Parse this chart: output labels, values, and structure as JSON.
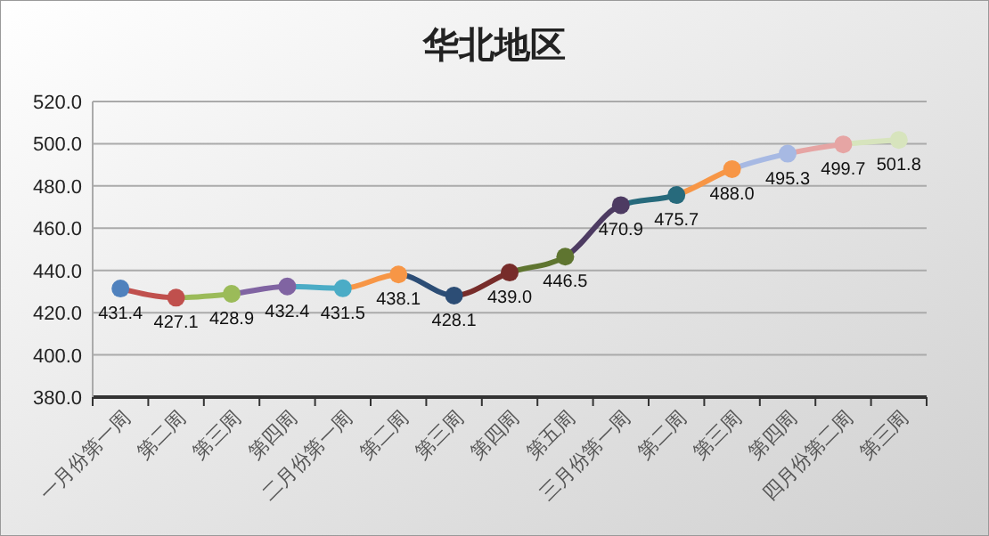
{
  "chart_data": {
    "type": "line",
    "title": "华北地区",
    "categories": [
      "一月份第一周",
      "第二周",
      "第三周",
      "第四周",
      "二月份第一周",
      "第二周",
      "第三周",
      "第四周",
      "第五周",
      "三月份第一周",
      "第二周",
      "第三周",
      "第四周",
      "四月份第二周",
      "第三周"
    ],
    "series": [
      {
        "values": [
          431.4,
          427.1,
          428.9,
          432.4,
          431.5,
          438.1,
          428.1,
          439.0,
          446.5,
          470.9,
          475.7,
          488.0,
          495.3,
          499.7,
          501.8
        ],
        "value_labels": [
          "431.4",
          "427.1",
          "428.9",
          "432.4",
          "431.5",
          "438.1",
          "428.1",
          "439.0",
          "446.5",
          "470.9",
          "475.7",
          "488.0",
          "495.3",
          "499.7",
          "501.8"
        ],
        "colors": [
          "#4f81bd",
          "#c0504d",
          "#9bbb59",
          "#8064a2",
          "#4bacc6",
          "#f79646",
          "#2c4d75",
          "#772c2a",
          "#5f7530",
          "#4d3b62",
          "#276a7c",
          "#f79646",
          "#a7b9e3",
          "#e6a5a4",
          "#d7e4bd"
        ]
      }
    ],
    "ylim": [
      380,
      520
    ],
    "yticks": [
      {
        "value": 380,
        "label": "380.0"
      },
      {
        "value": 400,
        "label": "400.0"
      },
      {
        "value": 420,
        "label": "420.0"
      },
      {
        "value": 440,
        "label": "440.0"
      },
      {
        "value": 460,
        "label": "460.0"
      },
      {
        "value": 480,
        "label": "480.0"
      },
      {
        "value": 500,
        "label": "500.0"
      },
      {
        "value": 520,
        "label": "520.0"
      }
    ],
    "grid": "y",
    "marker": "circle",
    "line_style": "solid"
  }
}
